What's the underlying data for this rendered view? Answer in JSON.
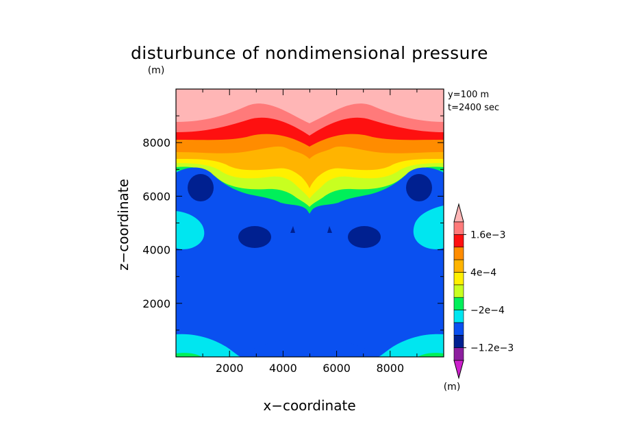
{
  "chart_data": {
    "type": "contour",
    "title": "disturbunce of nondimensional pressure",
    "title_unit": "(m)",
    "xlabel": "x−coordinate",
    "ylabel": "z−coordinate",
    "xlim": [
      0,
      10000
    ],
    "ylim": [
      0,
      10000
    ],
    "xticks": [
      2000,
      4000,
      6000,
      8000
    ],
    "yticks": [
      2000,
      4000,
      6000,
      8000
    ],
    "annotations": [
      "y=100 m",
      "t=2400 sec"
    ],
    "colorbar": {
      "levels": [
        -0.0016,
        -0.0012,
        -0.0008,
        -0.0004,
        -0.0002,
        0,
        0.0002,
        0.0004,
        0.0008,
        0.0012,
        0.0016,
        0.002
      ],
      "labels": [
        "1.6e−3",
        "4e−4",
        "−2e−4",
        "−1.2e−3"
      ],
      "unit": "(m)",
      "colors": [
        "#cc1fcc",
        "#8c1f9e",
        "#002090",
        "#0a50f0",
        "#00e6f0",
        "#00ef5a",
        "#c8ff20",
        "#fff000",
        "#ffb400",
        "#ff8c00",
        "#fe1010",
        "#ff7a7a",
        "#ffb6b6"
      ]
    }
  }
}
